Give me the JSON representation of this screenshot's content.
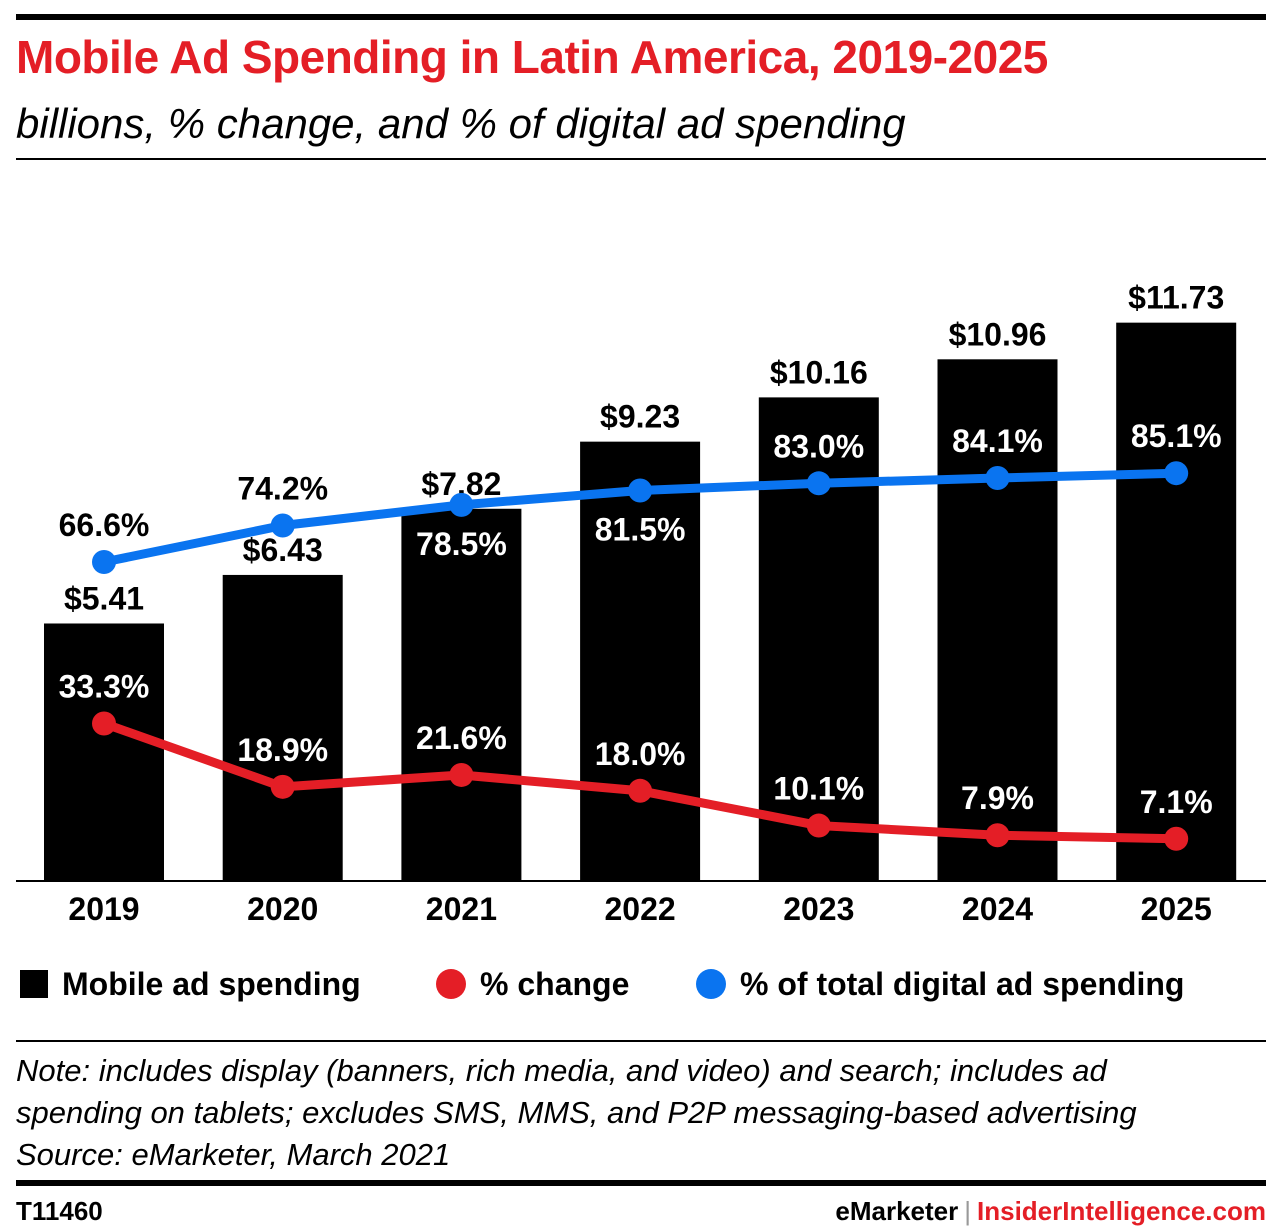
{
  "header": {
    "title": "Mobile Ad Spending in Latin America, 2019-2025",
    "subtitle": "billions, % change, and % of digital ad spending"
  },
  "chart_data": {
    "type": "bar",
    "categories": [
      "2019",
      "2020",
      "2021",
      "2022",
      "2023",
      "2024",
      "2025"
    ],
    "series": [
      {
        "name": "Mobile ad spending",
        "type": "bar",
        "values": [
          5.41,
          6.43,
          7.82,
          9.23,
          10.16,
          10.96,
          11.73
        ],
        "labels": [
          "$5.41",
          "$6.43",
          "$7.82",
          "$9.23",
          "$10.16",
          "$10.96",
          "$11.73"
        ],
        "color": "#000000"
      },
      {
        "name": "% change",
        "type": "line",
        "values": [
          33.3,
          18.9,
          21.6,
          18.0,
          10.1,
          7.9,
          7.1
        ],
        "labels": [
          "33.3%",
          "18.9%",
          "21.6%",
          "18.0%",
          "10.1%",
          "7.9%",
          "7.1%"
        ],
        "color": "#e41e26"
      },
      {
        "name": "% of total digital ad spending",
        "type": "line",
        "values": [
          66.6,
          74.2,
          78.5,
          81.5,
          83.0,
          84.1,
          85.1
        ],
        "labels": [
          "66.6%",
          "74.2%",
          "78.5%",
          "81.5%",
          "83.0%",
          "84.1%",
          "85.1%"
        ],
        "color": "#0a74f0"
      }
    ],
    "legend_position": "bottom",
    "grid": false
  },
  "legend": {
    "items": [
      {
        "label": "Mobile ad spending",
        "shape": "square",
        "color": "#000000"
      },
      {
        "label": "% change",
        "shape": "dot",
        "color": "#e41e26"
      },
      {
        "label": "% of total digital ad spending",
        "shape": "dot",
        "color": "#0a74f0"
      }
    ]
  },
  "notes": {
    "line1": "Note: includes display (banners, rich media, and video) and search; includes ad",
    "line2": "spending on tablets; excludes SMS, MMS, and P2P messaging-based advertising",
    "line3": "Source: eMarketer, March 2021"
  },
  "footer": {
    "chart_id": "T11460",
    "brand": "eMarketer",
    "separator": "|",
    "site": "InsiderIntelligence.com"
  }
}
